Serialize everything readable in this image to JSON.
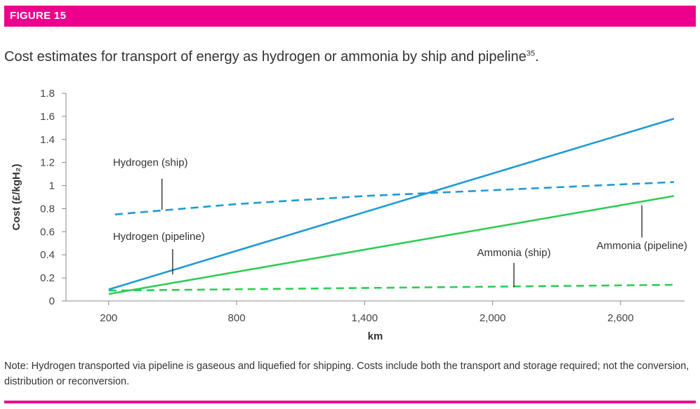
{
  "figure_label": "FIGURE 15",
  "caption": "Cost estimates for transport of energy as hydrogen or ammonia by ship and pipeline",
  "caption_ref": "35",
  "caption_end": ".",
  "note": "Note: Hydrogen transported via pipeline is gaseous and liquefied for shipping. Costs include both the transport and storage required; not the conversion, distribution or reconversion.",
  "colors": {
    "brand": "#ec008c",
    "hydrogen": "#1f9ad6",
    "ammonia": "#2ecc55"
  },
  "chart_data": {
    "type": "line",
    "title": "",
    "xlabel": "km",
    "ylabel": "Cost (£/kgH₂)",
    "xlim": [
      0,
      2900
    ],
    "ylim": [
      0,
      1.8
    ],
    "xticks": [
      200,
      800,
      1400,
      2000,
      2600
    ],
    "xtick_labels": [
      "200",
      "800",
      "1,400",
      "2,000",
      "2,600"
    ],
    "yticks": [
      0,
      0.2,
      0.4,
      0.6,
      0.8,
      1,
      1.2,
      1.4,
      1.6,
      1.8
    ],
    "ytick_labels": [
      "0",
      "0.2",
      "0.4",
      "0.6",
      "0.8",
      "1",
      "1.2",
      "1.4",
      "1.6",
      "1.8"
    ],
    "grid": false,
    "series": [
      {
        "name": "Hydrogen (ship)",
        "color": "#1f9ad6",
        "dashed": true,
        "x": [
          230,
          800,
          1400,
          2000,
          2600,
          2850
        ],
        "y": [
          0.75,
          0.84,
          0.91,
          0.96,
          1.01,
          1.03
        ]
      },
      {
        "name": "Hydrogen (pipeline)",
        "color": "#1f9ad6",
        "dashed": false,
        "x": [
          200,
          2850
        ],
        "y": [
          0.1,
          1.58
        ]
      },
      {
        "name": "Ammonia (pipeline)",
        "color": "#2ecc55",
        "dashed": false,
        "x": [
          200,
          2850
        ],
        "y": [
          0.06,
          0.91
        ]
      },
      {
        "name": "Ammonia (ship)",
        "color": "#2ecc55",
        "dashed": true,
        "x": [
          200,
          2850
        ],
        "y": [
          0.09,
          0.14
        ]
      }
    ],
    "annotations": [
      {
        "text": "Hydrogen (ship)",
        "anchor": "start",
        "at_x": 220,
        "at_y": 1.17,
        "ptr_x": 450,
        "ptr_from": 1.06,
        "ptr_to": 0.79
      },
      {
        "text": "Hydrogen (pipeline)",
        "anchor": "start",
        "at_x": 220,
        "at_y": 0.53,
        "ptr_x": 500,
        "ptr_from": 0.45,
        "ptr_to": 0.23
      },
      {
        "text": "Ammonia (ship)",
        "anchor": "middle",
        "at_x": 2100,
        "at_y": 0.39,
        "ptr_x": 2100,
        "ptr_from": 0.33,
        "ptr_to": 0.12
      },
      {
        "text": "Ammonia (pipeline)",
        "anchor": "middle",
        "at_x": 2700,
        "at_y": 0.45,
        "ptr_x": 2700,
        "ptr_from": 0.55,
        "ptr_to": 0.83
      }
    ]
  }
}
